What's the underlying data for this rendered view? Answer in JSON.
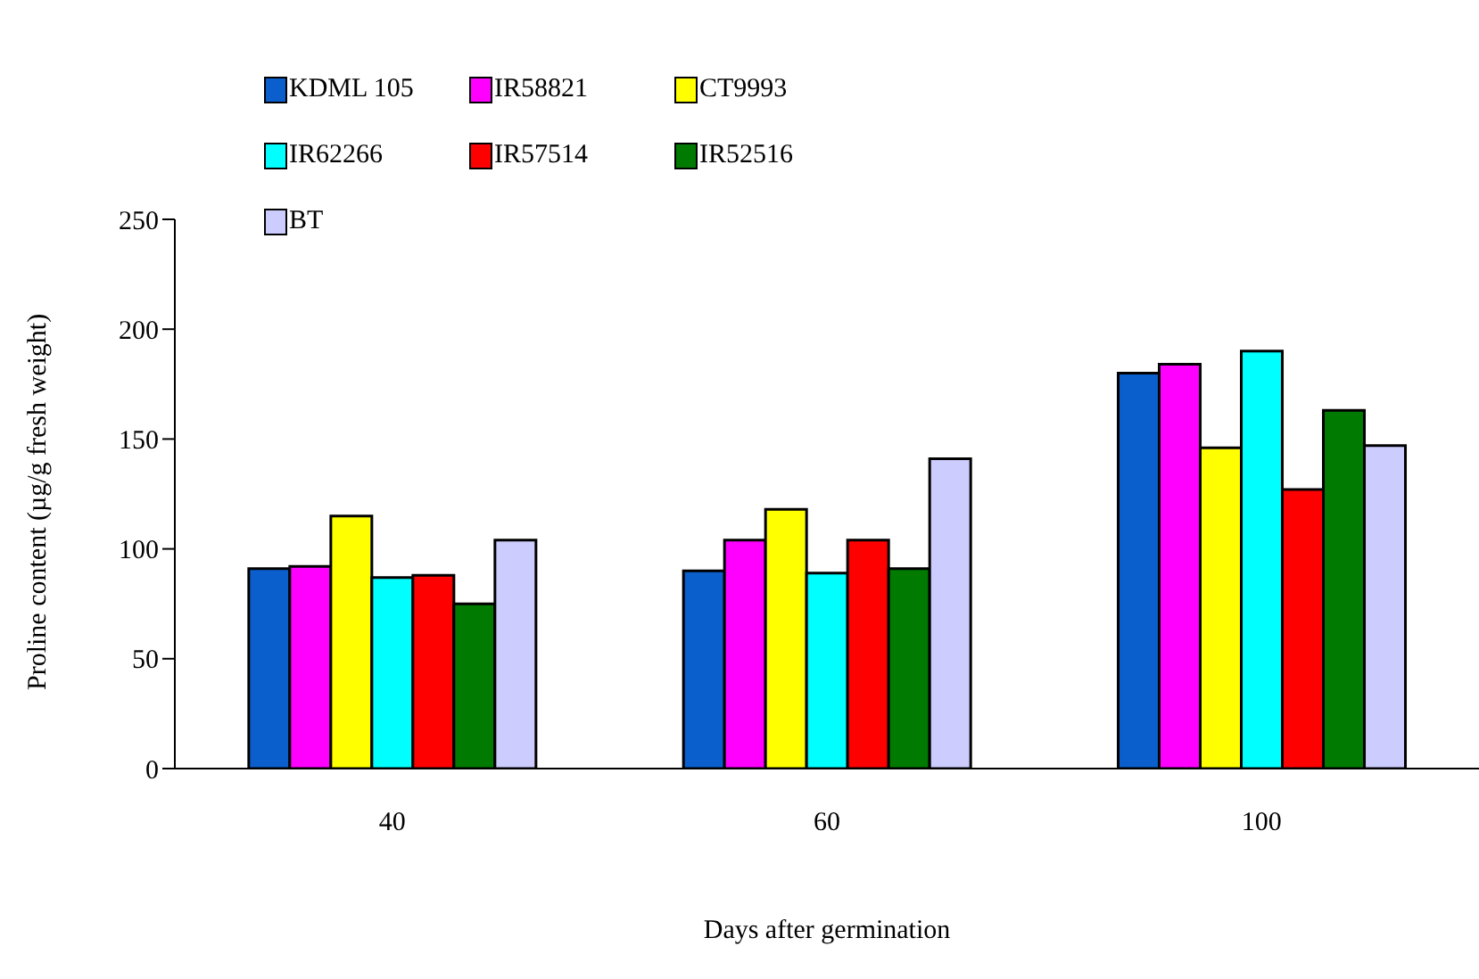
{
  "chart_data": {
    "type": "bar",
    "xlabel": "Days after germination",
    "ylabel": "Proline content (µg/g fresh weight)",
    "categories": [
      "40",
      "60",
      "100"
    ],
    "series": [
      {
        "name": "KDML 105",
        "color": "#0a5fcc",
        "values": [
          91,
          90,
          180
        ]
      },
      {
        "name": "IR58821",
        "color": "#ff00ff",
        "values": [
          92,
          104,
          184
        ]
      },
      {
        "name": "CT9993",
        "color": "#ffff00",
        "values": [
          115,
          118,
          146
        ]
      },
      {
        "name": "IR62266",
        "color": "#00ffff",
        "values": [
          87,
          89,
          190
        ]
      },
      {
        "name": "IR57514",
        "color": "#ff0000",
        "values": [
          88,
          104,
          127
        ]
      },
      {
        "name": "IR52516",
        "color": "#007a00",
        "values": [
          75,
          91,
          163
        ]
      },
      {
        "name": "BT",
        "color": "#ccccff",
        "values": [
          104,
          141,
          147
        ]
      }
    ],
    "ylim": [
      0,
      250
    ],
    "yticks": [
      0,
      50,
      100,
      150,
      200,
      250
    ],
    "grid": false,
    "legend": "top left"
  }
}
